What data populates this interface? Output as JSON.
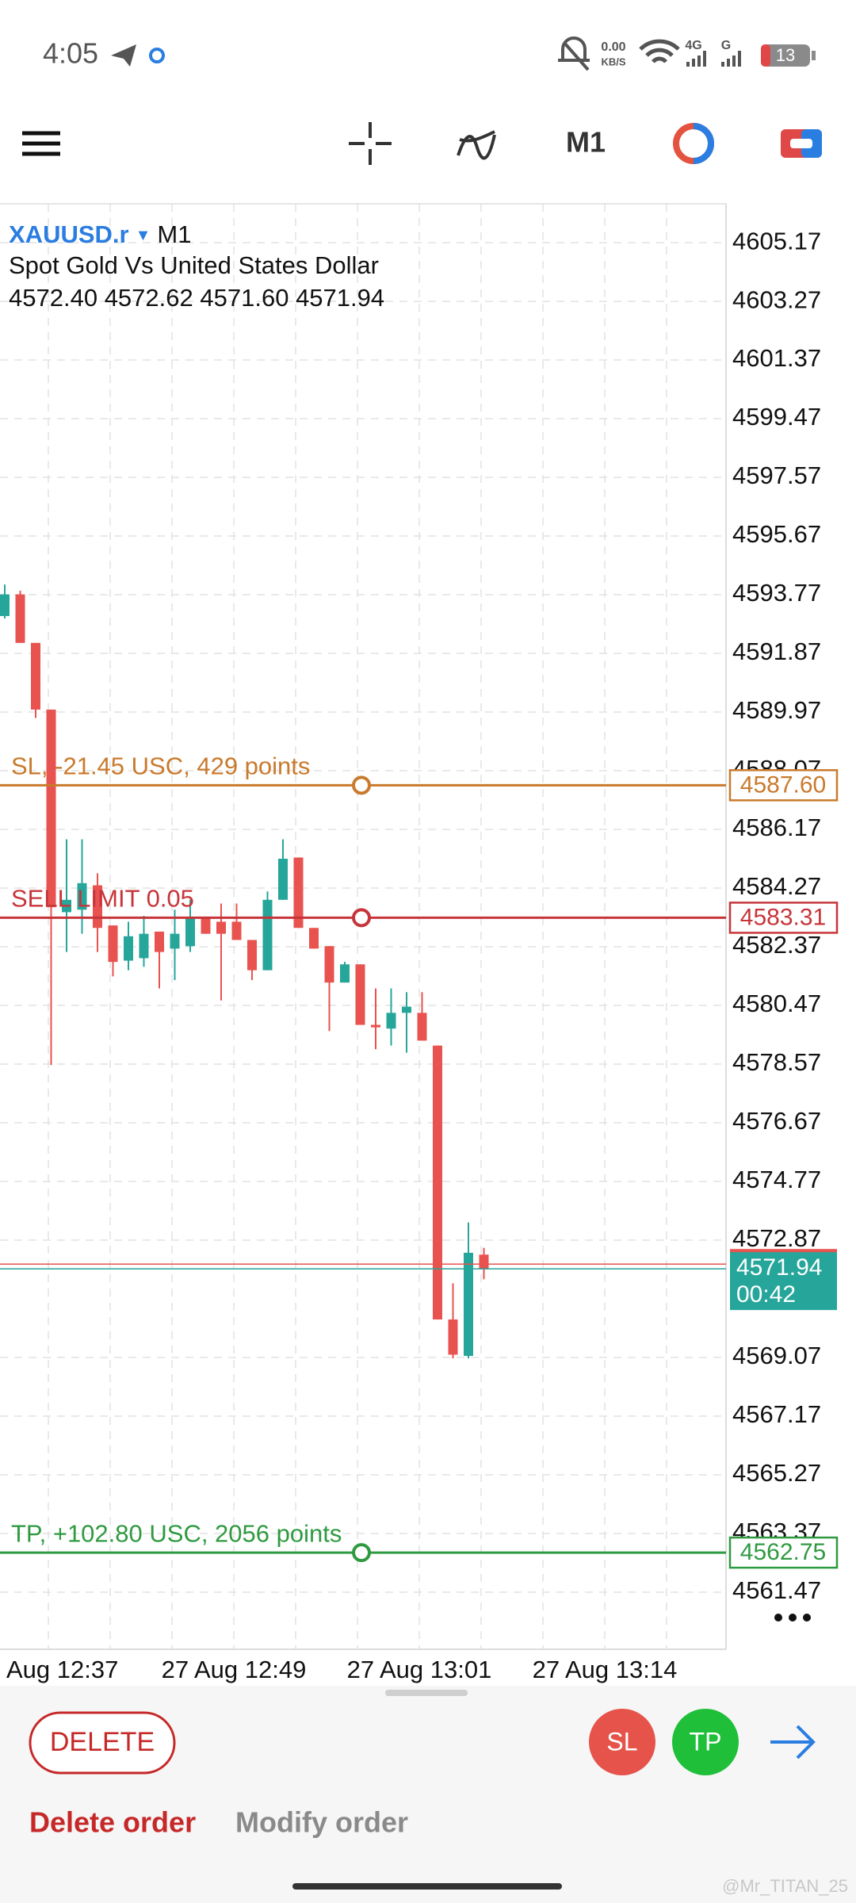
{
  "status_bar": {
    "time": "4:05",
    "net_speed": "0.00",
    "net_unit": "KB/S",
    "signal_1": "4G",
    "signal_2": "G",
    "battery": "13"
  },
  "toolbar": {
    "timeframe": "M1"
  },
  "chart": {
    "symbol": "XAUUSD.r",
    "timeframe": "M1",
    "description": "Spot Gold Vs United States Dollar",
    "ohlc": [
      "4572.40",
      "4572.62",
      "4571.60",
      "4571.94"
    ],
    "ylim": [
      4559.62,
      4606.43
    ],
    "price_ticks": [
      4605.17,
      4603.27,
      4601.37,
      4599.47,
      4597.57,
      4595.67,
      4593.77,
      4591.87,
      4589.97,
      4588.07,
      4586.17,
      4584.27,
      4582.37,
      4580.47,
      4578.57,
      4576.67,
      4574.77,
      4572.87,
      4569.07,
      4567.17,
      4565.27,
      4563.37,
      4561.47
    ],
    "time_labels": [
      "Aug 12:37",
      "27 Aug 12:49",
      "27 Aug 13:01",
      "27 Aug 13:14"
    ],
    "up_color": "#26a69a",
    "down_color": "#e8534f",
    "candles": [
      {
        "open": 4593.08,
        "high": 4594.1,
        "low": 4593.0,
        "close": 4593.78
      },
      {
        "open": 4593.78,
        "high": 4593.9,
        "low": 4592.21,
        "close": 4592.21
      },
      {
        "open": 4592.21,
        "high": 4592.21,
        "low": 4589.78,
        "close": 4590.05
      },
      {
        "open": 4590.05,
        "high": 4590.05,
        "low": 4578.54,
        "close": 4583.65
      },
      {
        "open": 4583.49,
        "high": 4585.85,
        "low": 4582.2,
        "close": 4583.89
      },
      {
        "open": 4583.57,
        "high": 4585.85,
        "low": 4582.79,
        "close": 4584.43
      },
      {
        "open": 4584.36,
        "high": 4584.75,
        "low": 4582.2,
        "close": 4582.98
      },
      {
        "open": 4583.06,
        "high": 4583.06,
        "low": 4581.41,
        "close": 4581.88
      },
      {
        "open": 4581.92,
        "high": 4583.18,
        "low": 4581.61,
        "close": 4582.71
      },
      {
        "open": 4582.0,
        "high": 4583.37,
        "low": 4581.72,
        "close": 4582.79
      },
      {
        "open": 4582.86,
        "high": 4582.86,
        "low": 4581.02,
        "close": 4582.2
      },
      {
        "open": 4582.31,
        "high": 4583.57,
        "low": 4581.29,
        "close": 4582.79
      },
      {
        "open": 4582.39,
        "high": 4583.89,
        "low": 4582.2,
        "close": 4583.3
      },
      {
        "open": 4583.3,
        "high": 4583.3,
        "low": 4582.79,
        "close": 4582.79
      },
      {
        "open": 4583.18,
        "high": 4583.77,
        "low": 4580.63,
        "close": 4582.79
      },
      {
        "open": 4583.18,
        "high": 4583.77,
        "low": 4582.59,
        "close": 4582.59
      },
      {
        "open": 4582.59,
        "high": 4582.59,
        "low": 4581.29,
        "close": 4581.61
      },
      {
        "open": 4581.61,
        "high": 4584.16,
        "low": 4581.61,
        "close": 4583.89
      },
      {
        "open": 4583.89,
        "high": 4585.85,
        "low": 4583.89,
        "close": 4585.22
      },
      {
        "open": 4585.26,
        "high": 4585.26,
        "low": 4582.98,
        "close": 4582.98
      },
      {
        "open": 4582.98,
        "high": 4582.98,
        "low": 4582.31,
        "close": 4582.31
      },
      {
        "open": 4582.39,
        "high": 4582.39,
        "low": 4579.64,
        "close": 4581.21
      },
      {
        "open": 4581.21,
        "high": 4581.88,
        "low": 4581.21,
        "close": 4581.8
      },
      {
        "open": 4581.8,
        "high": 4581.8,
        "low": 4579.84,
        "close": 4579.84
      },
      {
        "open": 4579.84,
        "high": 4581.02,
        "low": 4579.05,
        "close": 4579.76
      },
      {
        "open": 4579.72,
        "high": 4581.02,
        "low": 4579.17,
        "close": 4580.23
      },
      {
        "open": 4580.23,
        "high": 4580.9,
        "low": 4578.94,
        "close": 4580.43
      },
      {
        "open": 4580.23,
        "high": 4580.9,
        "low": 4579.33,
        "close": 4579.33
      },
      {
        "open": 4579.17,
        "high": 4579.17,
        "low": 4570.3,
        "close": 4570.3
      },
      {
        "open": 4570.3,
        "high": 4571.47,
        "low": 4569.04,
        "close": 4569.16
      },
      {
        "open": 4569.12,
        "high": 4573.44,
        "low": 4569.04,
        "close": 4572.46
      },
      {
        "open": 4572.4,
        "high": 4572.62,
        "low": 4571.6,
        "close": 4571.94
      }
    ],
    "orders": [
      {
        "label": "SL, -21.45 USC, 429 points",
        "price": {
          "value": 4587.6,
          "label": "4587.60"
        },
        "color": "#c97a2c"
      },
      {
        "label": "SELL LIMIT 0.05",
        "price": 4583.31,
        "color": "#c6353a"
      },
      {
        "label": "TP, +102.80 USC, 2056 points",
        "price": 4562.75,
        "color": "#2f9a40"
      }
    ],
    "current_price": 4571.94,
    "countdown": "00:42",
    "current_color": "#26a69a"
  },
  "actions": {
    "delete_button": "DELETE",
    "sl": "SL",
    "tp": "TP",
    "tabs": [
      "Delete order",
      "Modify order"
    ]
  },
  "watermark": "@Mr_TITAN_25"
}
